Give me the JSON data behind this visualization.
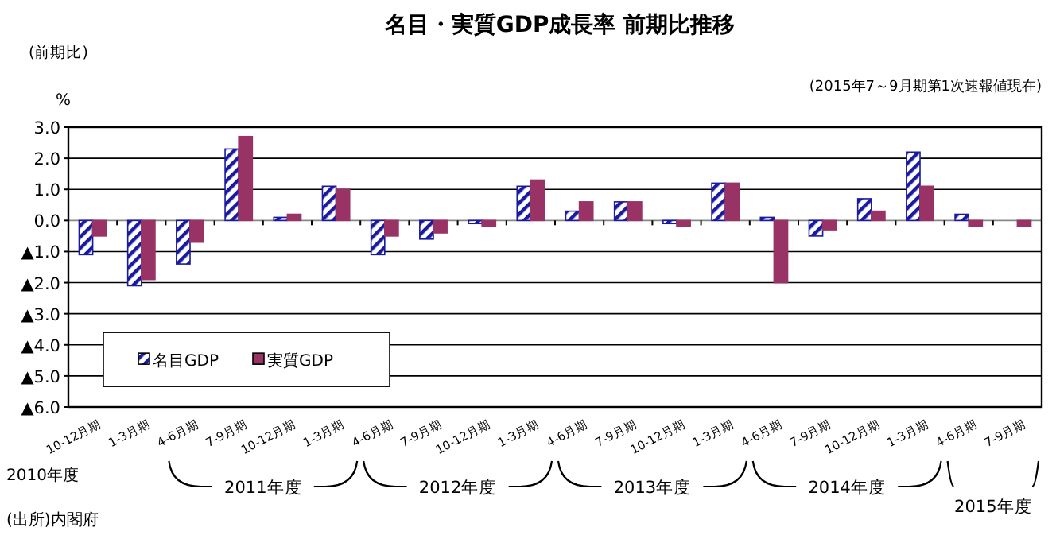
{
  "chart_data": {
    "type": "bar",
    "title": "名目・実質GDP成長率  前期比推移",
    "subtitle": "(2015年7～9月期第1次速報値現在)",
    "ylabel": "%",
    "annotations": [
      "(前期比)",
      "2010年度",
      "2011年度",
      "2012年度",
      "2013年度",
      "2014年度",
      "2015年度",
      "(出所)内閣府"
    ],
    "categories": [
      "10-12月期",
      "1-3月期",
      "4-6月期",
      "7-9月期",
      "10-12月期",
      "1-3月期",
      "4-6月期",
      "7-9月期",
      "10-12月期",
      "1-3月期",
      "4-6月期",
      "7-9月期",
      "10-12月期",
      "1-3月期",
      "4-6月期",
      "7-9月期",
      "10-12月期",
      "1-3月期",
      "4-6月期",
      "7-9月期"
    ],
    "series": [
      {
        "name": "名目GDP",
        "color": "#1a1aa0",
        "values": [
          -1.1,
          -2.1,
          -1.4,
          2.3,
          0.1,
          1.1,
          -1.1,
          -0.6,
          -0.1,
          1.1,
          0.3,
          0.6,
          -0.1,
          1.2,
          0.1,
          -0.5,
          0.7,
          2.2,
          0.2,
          null
        ]
      },
      {
        "name": "実質GDP",
        "color": "#993366",
        "values": [
          -0.5,
          -1.9,
          -0.7,
          2.7,
          0.2,
          1.0,
          -0.5,
          -0.4,
          -0.2,
          1.3,
          0.6,
          0.6,
          -0.2,
          1.2,
          -2.0,
          -0.3,
          0.3,
          1.1,
          -0.2,
          -0.2
        ]
      }
    ],
    "ylim": [
      -6,
      3
    ],
    "yticks": [
      {
        "value": 3,
        "label": "3.0"
      },
      {
        "value": 2,
        "label": "2.0"
      },
      {
        "value": 1,
        "label": "1.0"
      },
      {
        "value": 0,
        "label": "0.0"
      },
      {
        "value": -1,
        "label": "▲1.0"
      },
      {
        "value": -2,
        "label": "▲2.0"
      },
      {
        "value": -3,
        "label": "▲3.0"
      },
      {
        "value": -4,
        "label": "▲4.0"
      },
      {
        "value": -5,
        "label": "▲5.0"
      },
      {
        "value": -6,
        "label": "▲6.0"
      }
    ],
    "grid": "y",
    "legend": "bottom left"
  }
}
